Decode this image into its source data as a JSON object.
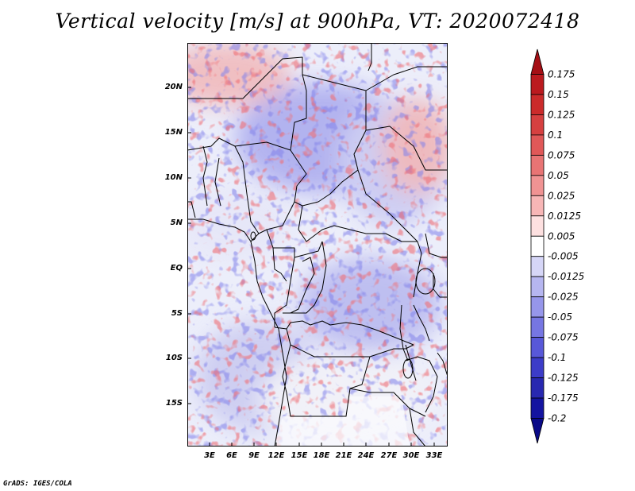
{
  "title": "Vertical velocity [m/s] at 900hPa, VT: 2020072418",
  "footer": "GrADS: IGES/COLA",
  "map": {
    "lon_labels": [
      "3E",
      "6E",
      "9E",
      "12E",
      "15E",
      "18E",
      "21E",
      "24E",
      "27E",
      "30E",
      "33E"
    ],
    "lat_labels": [
      "20N",
      "15N",
      "10N",
      "5N",
      "EQ",
      "5S",
      "10S",
      "15S"
    ]
  },
  "colorbar": {
    "labels": [
      "0.175",
      "0.15",
      "0.125",
      "0.1",
      "0.075",
      "0.05",
      "0.025",
      "0.0125",
      "0.005",
      "-0.005",
      "-0.0125",
      "-0.025",
      "-0.05",
      "-0.075",
      "-0.1",
      "-0.125",
      "-0.175",
      "-0.2"
    ],
    "colors": [
      "#a50f15",
      "#bb1a1f",
      "#cb2b2b",
      "#d64040",
      "#e05858",
      "#e87474",
      "#f09393",
      "#f7b6b6",
      "#fde0e0",
      "#ffffff",
      "#d6d6f7",
      "#b6b6f0",
      "#9696ea",
      "#7676e2",
      "#5858d8",
      "#3c3cc8",
      "#2828b0",
      "#1414a0",
      "#0a0a88"
    ]
  },
  "colors": {
    "positive": "#d7303a",
    "negative": "#3e3ec8"
  }
}
